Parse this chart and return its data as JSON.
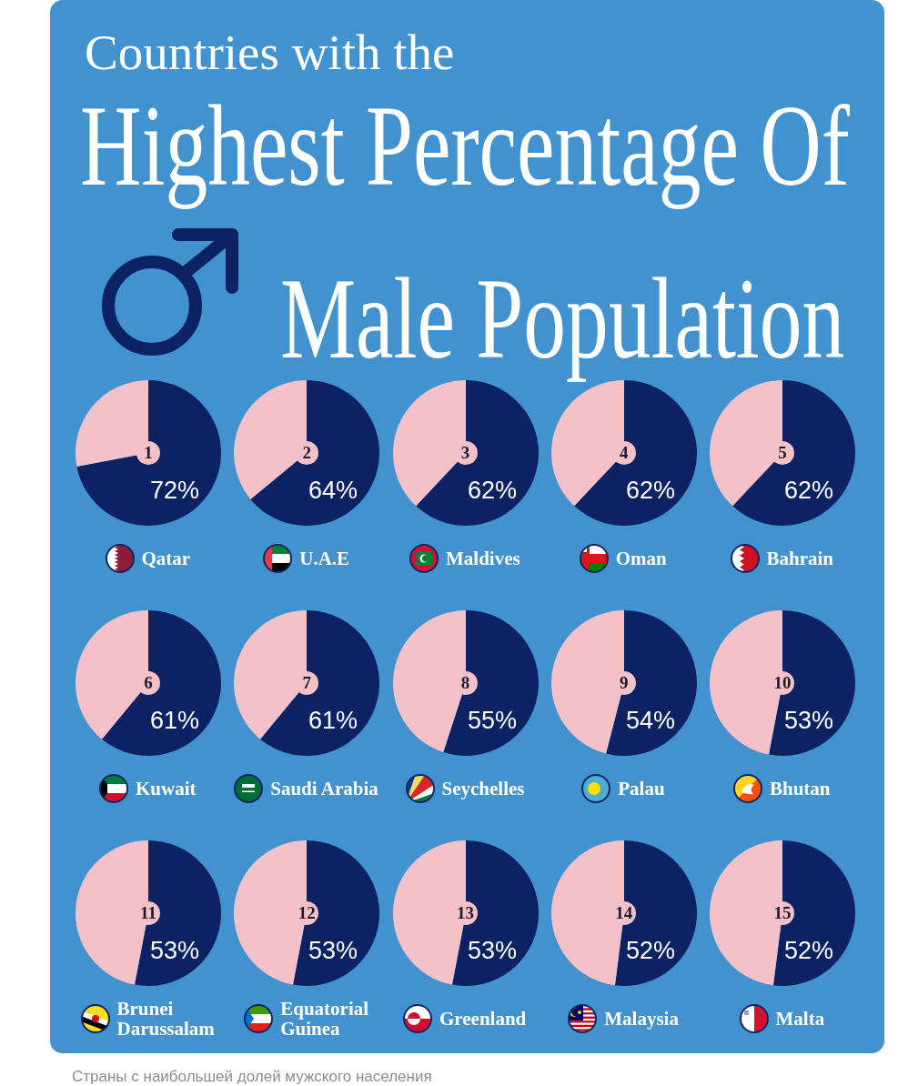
{
  "chart_data": [
    {
      "type": "other",
      "title": "Countries with the\nHighest Percentage Of\nMale Population",
      "annotations": [
        "Страны с наибольшей долей мужского населения"
      ]
    },
    {
      "type": "pie",
      "title": "Qatar",
      "categories": [
        null,
        null
      ],
      "values": [
        72,
        28
      ],
      "colors": [
        "#0d2262",
        "#f5c1c8"
      ],
      "value_labels": [
        "72%",
        null
      ],
      "annotations": [
        "1"
      ]
    },
    {
      "type": "pie",
      "title": "U.A.E",
      "categories": [
        null,
        null
      ],
      "values": [
        64,
        36
      ],
      "colors": [
        "#0d2262",
        "#f5c1c8"
      ],
      "value_labels": [
        "64%",
        null
      ],
      "annotations": [
        "2"
      ]
    },
    {
      "type": "pie",
      "title": "Maldives",
      "categories": [
        null,
        null
      ],
      "values": [
        62,
        38
      ],
      "colors": [
        "#0d2262",
        "#f5c1c8"
      ],
      "value_labels": [
        "62%",
        null
      ],
      "annotations": [
        "3"
      ]
    },
    {
      "type": "pie",
      "title": "Oman",
      "categories": [
        null,
        null
      ],
      "values": [
        62,
        38
      ],
      "colors": [
        "#0d2262",
        "#f5c1c8"
      ],
      "value_labels": [
        "62%",
        null
      ],
      "annotations": [
        "4"
      ]
    },
    {
      "type": "pie",
      "title": "Bahrain",
      "categories": [
        null,
        null
      ],
      "values": [
        62,
        38
      ],
      "colors": [
        "#0d2262",
        "#f5c1c8"
      ],
      "value_labels": [
        "62%",
        null
      ],
      "annotations": [
        "5"
      ]
    },
    {
      "type": "pie",
      "title": "Kuwait",
      "categories": [
        null,
        null
      ],
      "values": [
        61,
        39
      ],
      "colors": [
        "#0d2262",
        "#f5c1c8"
      ],
      "value_labels": [
        "61%",
        null
      ],
      "annotations": [
        "6"
      ]
    },
    {
      "type": "pie",
      "title": "Saudi Arabia",
      "categories": [
        null,
        null
      ],
      "values": [
        61,
        39
      ],
      "colors": [
        "#0d2262",
        "#f5c1c8"
      ],
      "value_labels": [
        "61%",
        null
      ],
      "annotations": [
        "7"
      ]
    },
    {
      "type": "pie",
      "title": "Seychelles",
      "categories": [
        null,
        null
      ],
      "values": [
        55,
        45
      ],
      "colors": [
        "#0d2262",
        "#f5c1c8"
      ],
      "value_labels": [
        "55%",
        null
      ],
      "annotations": [
        "8"
      ]
    },
    {
      "type": "pie",
      "title": "Palau",
      "categories": [
        null,
        null
      ],
      "values": [
        54,
        46
      ],
      "colors": [
        "#0d2262",
        "#f5c1c8"
      ],
      "value_labels": [
        "54%",
        null
      ],
      "annotations": [
        "9"
      ]
    },
    {
      "type": "pie",
      "title": "Bhutan",
      "categories": [
        null,
        null
      ],
      "values": [
        53,
        47
      ],
      "colors": [
        "#0d2262",
        "#f5c1c8"
      ],
      "value_labels": [
        "53%",
        null
      ],
      "annotations": [
        "10"
      ]
    },
    {
      "type": "pie",
      "title": "Brunei Darussalam",
      "categories": [
        null,
        null
      ],
      "values": [
        53,
        47
      ],
      "colors": [
        "#0d2262",
        "#f5c1c8"
      ],
      "value_labels": [
        "53%",
        null
      ],
      "annotations": [
        "11"
      ]
    },
    {
      "type": "pie",
      "title": "Equatorial Guinea",
      "categories": [
        null,
        null
      ],
      "values": [
        53,
        47
      ],
      "colors": [
        "#0d2262",
        "#f5c1c8"
      ],
      "value_labels": [
        "53%",
        null
      ],
      "annotations": [
        "12"
      ]
    },
    {
      "type": "pie",
      "title": "Greenland",
      "categories": [
        null,
        null
      ],
      "values": [
        53,
        47
      ],
      "colors": [
        "#0d2262",
        "#f5c1c8"
      ],
      "value_labels": [
        "53%",
        null
      ],
      "annotations": [
        "13"
      ]
    },
    {
      "type": "pie",
      "title": "Malaysia",
      "categories": [
        null,
        null
      ],
      "values": [
        52,
        48
      ],
      "colors": [
        "#0d2262",
        "#f5c1c8"
      ],
      "value_labels": [
        "52%",
        null
      ],
      "annotations": [
        "14"
      ]
    },
    {
      "type": "pie",
      "title": "Malta",
      "categories": [
        null,
        null
      ],
      "values": [
        52,
        48
      ],
      "colors": [
        "#0d2262",
        "#f5c1c8"
      ],
      "value_labels": [
        "52%",
        null
      ],
      "annotations": [
        "15"
      ]
    }
  ]
}
